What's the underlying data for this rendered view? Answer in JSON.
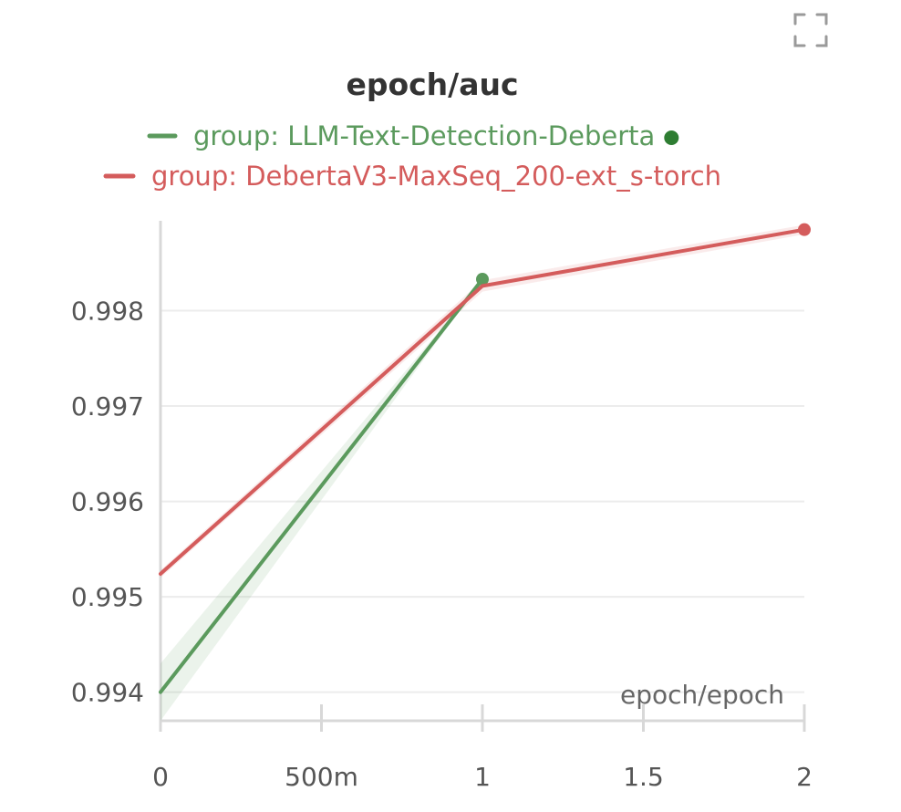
{
  "panel": {
    "expand_icon": "expand-corners-icon"
  },
  "chart_data": {
    "type": "line",
    "title": "epoch/auc",
    "xlabel": "epoch/epoch",
    "ylabel": "",
    "x_ticks": [
      {
        "value": 0,
        "label": "0"
      },
      {
        "value": 0.5,
        "label": "500m"
      },
      {
        "value": 1,
        "label": "1"
      },
      {
        "value": 1.5,
        "label": "1.5"
      },
      {
        "value": 2,
        "label": "2"
      }
    ],
    "y_ticks": [
      {
        "value": 0.994,
        "label": "0.994"
      },
      {
        "value": 0.995,
        "label": "0.995"
      },
      {
        "value": 0.996,
        "label": "0.996"
      },
      {
        "value": 0.997,
        "label": "0.997"
      },
      {
        "value": 0.998,
        "label": "0.998"
      }
    ],
    "xlim": [
      0,
      2
    ],
    "ylim": [
      0.9937,
      0.999
    ],
    "grid": "horizontal",
    "legend_position": "top",
    "series": [
      {
        "name": "group: LLM-Text-Detection-Deberta",
        "color": "#5b9a5d",
        "text_color": "#5b9a5d",
        "marker_color": "#2e7d32",
        "x": [
          0,
          1
        ],
        "y": [
          0.994,
          0.99833
        ],
        "band_low": [
          0.9937,
          0.99833
        ],
        "band_high": [
          0.9943,
          0.99833
        ]
      },
      {
        "name": "group: DebertaV3-MaxSeq_200-ext_s-torch",
        "color": "#d45c5c",
        "text_color": "#d45c5c",
        "marker_color": "#d45c5c",
        "x": [
          0,
          1,
          2
        ],
        "y": [
          0.99524,
          0.99826,
          0.99885
        ],
        "band_low": [
          0.9952,
          0.9982,
          0.9988
        ],
        "band_high": [
          0.99528,
          0.99832,
          0.9989
        ]
      }
    ]
  }
}
